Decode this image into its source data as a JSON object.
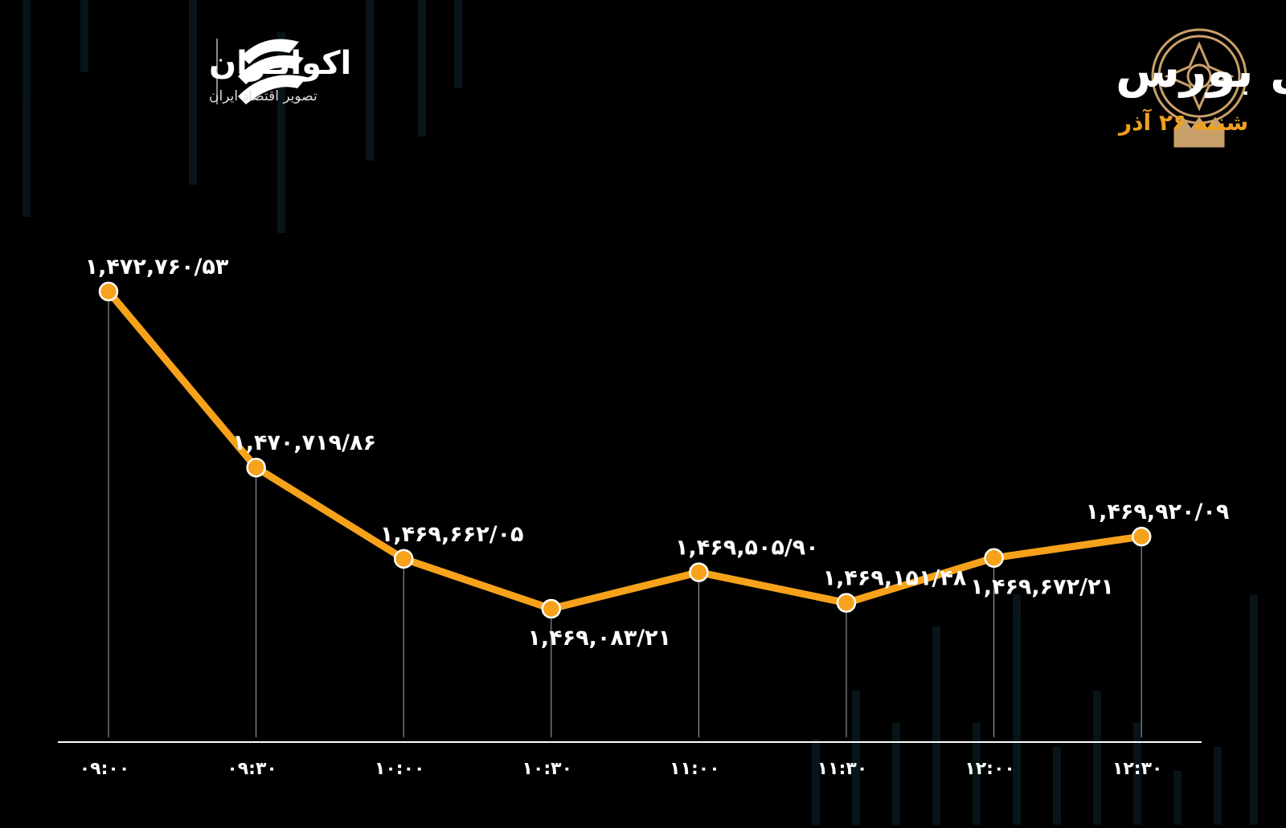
{
  "brand": {
    "name": "اکوایـران",
    "tagline": "تصویر اقتصاد ایران"
  },
  "chart_data": {
    "type": "line",
    "title": "روند شاخص کل بورس",
    "subtitle": "شنبه ۲۶ آذر",
    "categories": [
      "۰۹:۰۰",
      "۰۹:۳۰",
      "۱۰:۰۰",
      "۱۰:۳۰",
      "۱۱:۰۰",
      "۱۱:۳۰",
      "۱۲:۰۰",
      "۱۲:۳۰"
    ],
    "values": [
      1472760.53,
      1470719.86,
      1469662.05,
      1469083.21,
      1469505.9,
      1469151.48,
      1469672.21,
      1469920.09
    ],
    "value_labels": [
      "۱,۴۷۲,۷۶۰/۵۳",
      "۱,۴۷۰,۷۱۹/۸۶",
      "۱,۴۶۹,۶۶۲/۰۵",
      "۱,۴۶۹,۰۸۳/۲۱",
      "۱,۴۶۹,۵۰۵/۹۰",
      "۱,۴۶۹,۱۵۱/۴۸",
      "۱,۴۶۹,۶۷۲/۲۱",
      "۱,۴۶۹,۹۲۰/۰۹"
    ],
    "color": "#f7a21b"
  }
}
